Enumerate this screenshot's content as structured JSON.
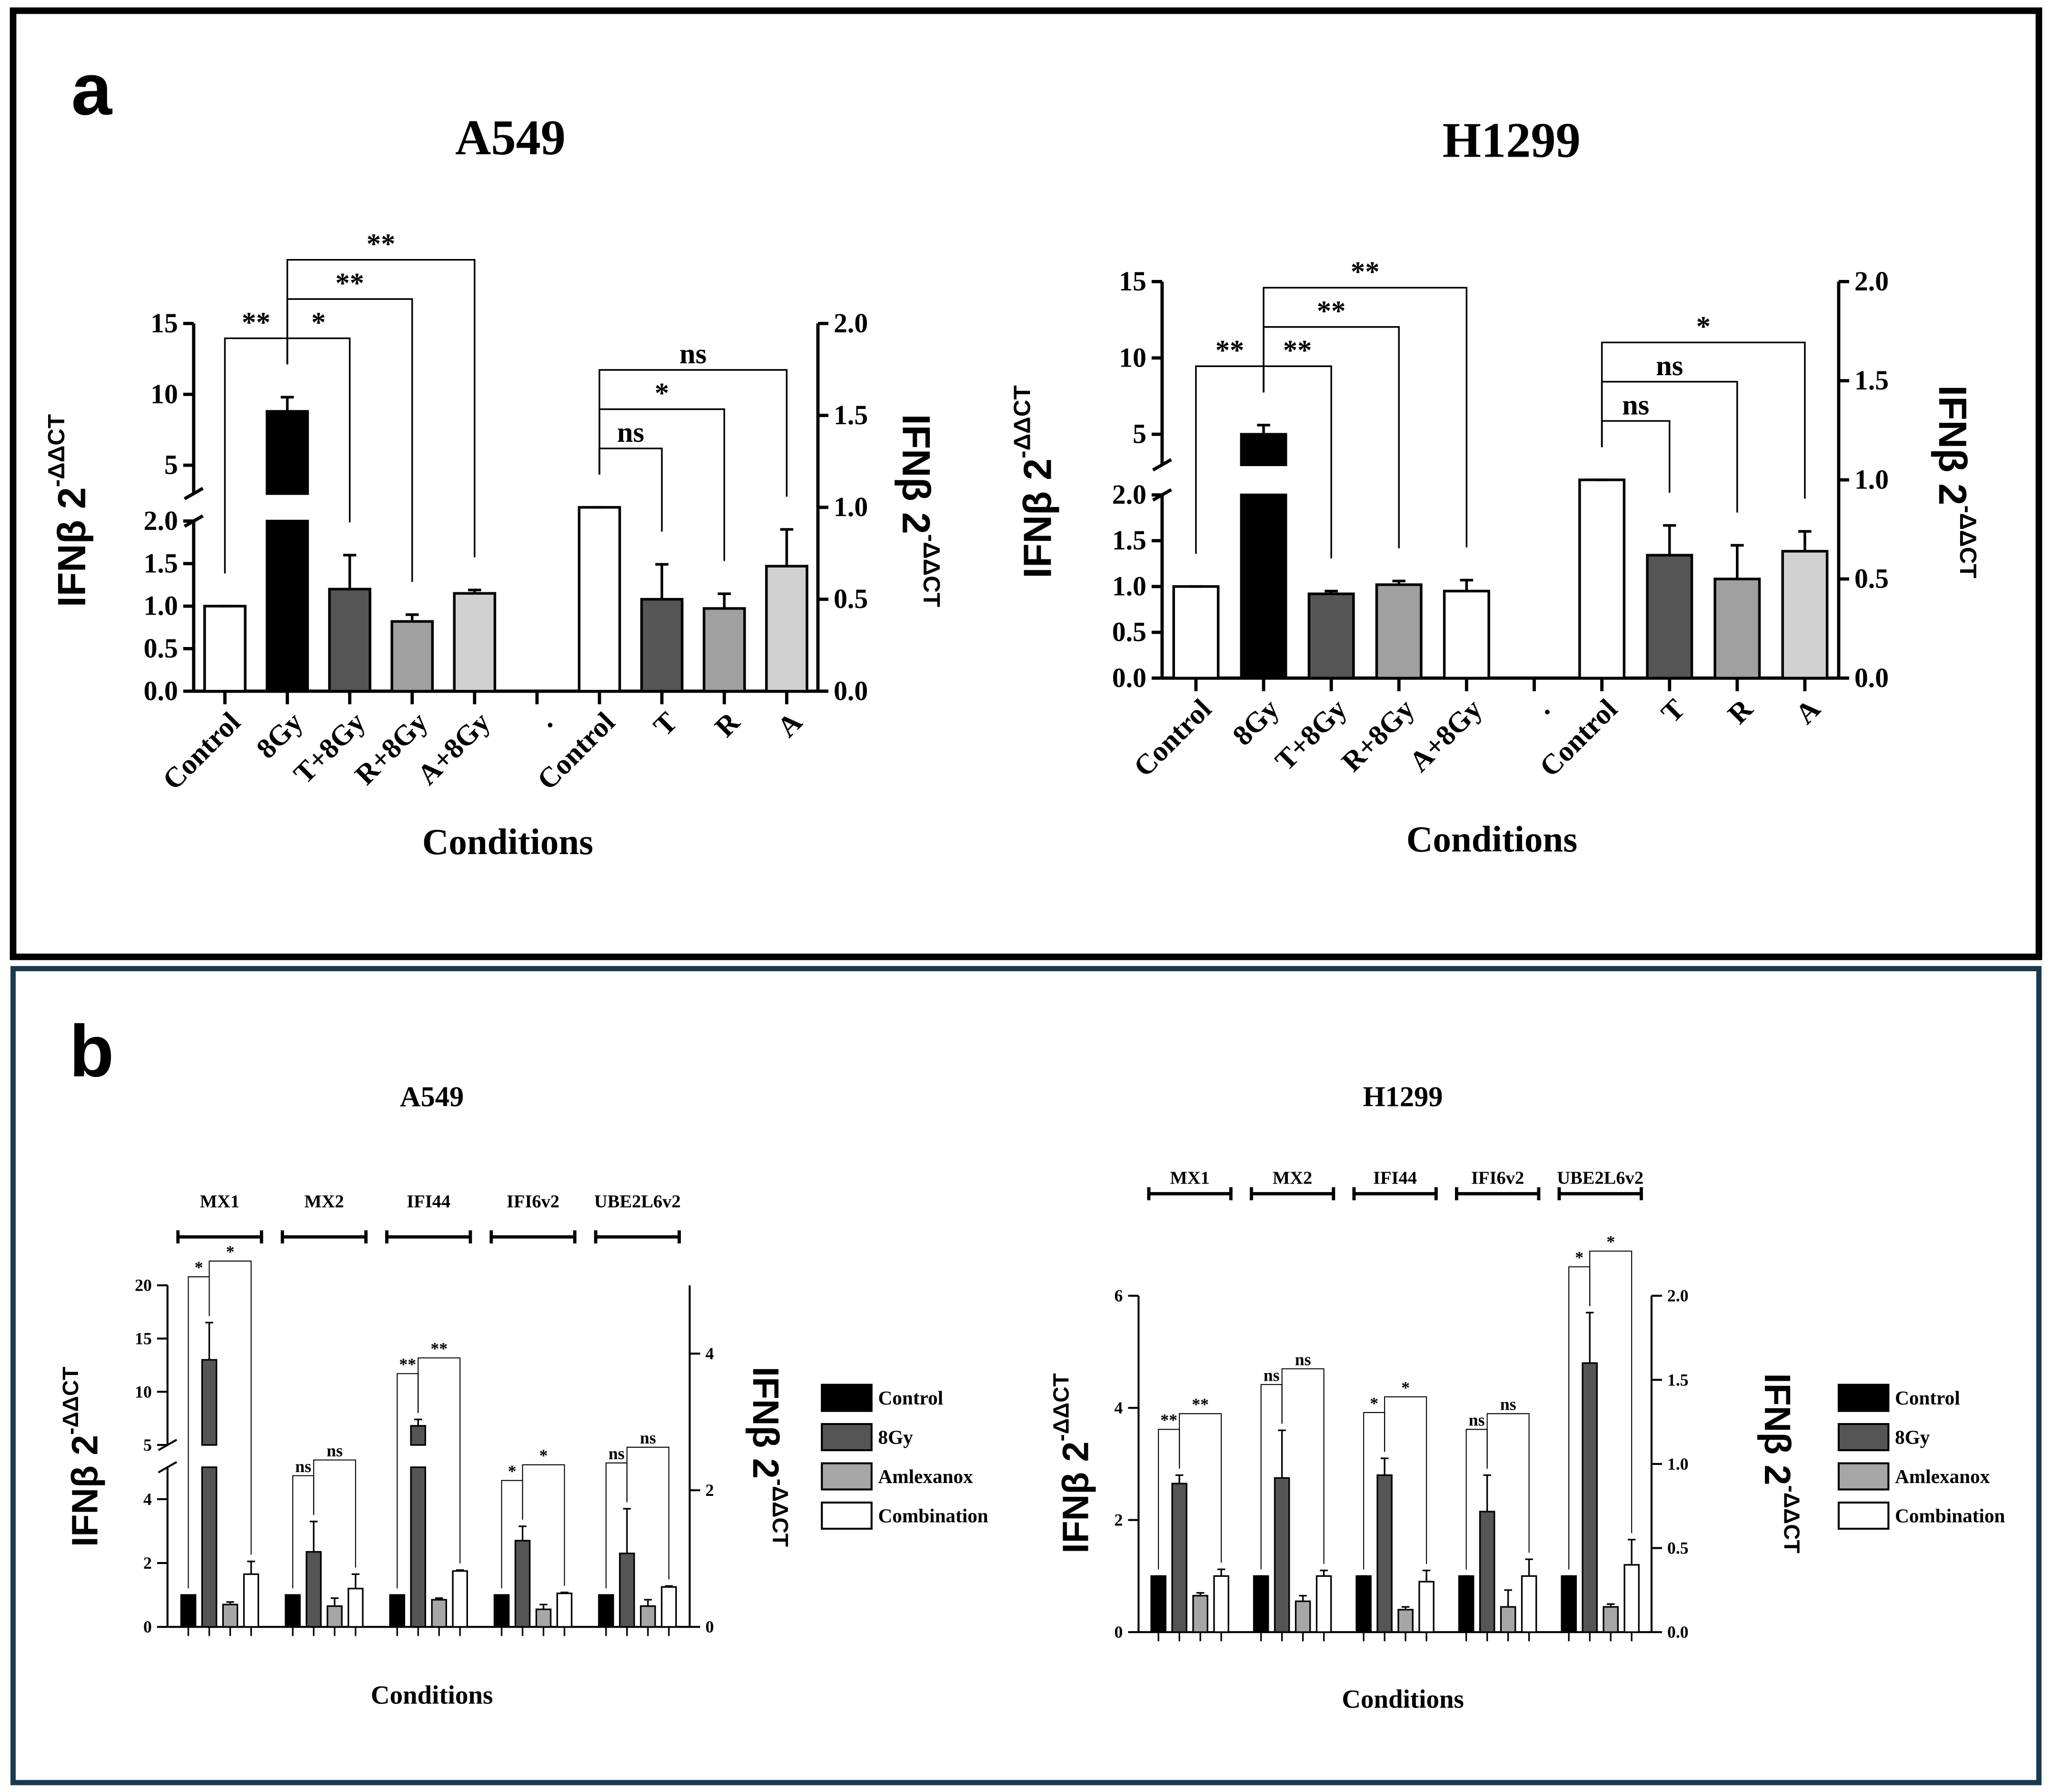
{
  "panel_labels": [
    "a",
    "b"
  ],
  "chart_data": [
    {
      "type": "bar",
      "title": "A549",
      "xlabel": "Conditions",
      "ylabel": "IFNβ 2",
      "ylabel_sup": "-ΔΔCT",
      "y2label": "IFNβ 2",
      "y2label_sup": "-ΔΔCT",
      "categories": [
        "Control",
        "8Gy",
        "T+8Gy",
        "R+8Gy",
        "A+8Gy",
        ".",
        "Control",
        "T",
        "R",
        "A"
      ],
      "ysegments": [
        {
          "ylim": [
            0,
            2
          ],
          "yticks": [
            {
              "value": 0,
              "label": "0.0"
            },
            {
              "value": 0.5,
              "label": "0.5"
            },
            {
              "value": 1,
              "label": "1.0"
            },
            {
              "value": 1.5,
              "label": "1.5"
            },
            {
              "value": 2,
              "label": "2.0"
            }
          ]
        },
        {
          "ylim": [
            3,
            15
          ],
          "yticks": [
            5,
            10,
            15
          ]
        }
      ],
      "y2lim": [
        0,
        2
      ],
      "y2ticks": [
        {
          "value": 0,
          "label": "0.0"
        },
        {
          "value": 0.5,
          "label": "0.5"
        },
        {
          "value": 1,
          "label": "1.0"
        },
        {
          "value": 1.5,
          "label": "1.5"
        },
        {
          "value": 2,
          "label": "2.0"
        }
      ],
      "series": [
        {
          "colors": [
            "#ffffff",
            "#000000",
            "#555555",
            "#a0a0a0",
            "#d0d0d0",
            null,
            null,
            null,
            null,
            null
          ],
          "values": [
            1,
            8.8,
            1.2,
            0.82,
            1.15,
            null,
            null,
            null,
            null,
            null
          ],
          "errors": [
            0,
            1,
            0.4,
            0.08,
            0.04,
            null,
            null,
            null,
            null,
            null
          ]
        },
        {
          "axis": "y2",
          "colors": [
            null,
            null,
            null,
            null,
            null,
            null,
            "#ffffff",
            "#555555",
            "#a0a0a0",
            "#d0d0d0"
          ],
          "values": [
            null,
            null,
            null,
            null,
            null,
            null,
            1,
            0.5,
            0.45,
            0.68
          ],
          "errors": [
            null,
            null,
            null,
            null,
            null,
            null,
            0,
            0.19,
            0.08,
            0.2
          ]
        }
      ],
      "annotations": [
        {
          "text": "**",
          "from": 0,
          "to": 1
        },
        {
          "text": "*",
          "from": 1,
          "to": 2
        },
        {
          "text": "**",
          "from": 1,
          "to": 3
        },
        {
          "text": "**",
          "from": 1,
          "to": 4
        },
        {
          "text": "ns",
          "from": 6,
          "to": 7
        },
        {
          "text": "*",
          "from": 6,
          "to": 8
        },
        {
          "text": "ns",
          "from": 6,
          "to": 9
        }
      ]
    },
    {
      "type": "bar",
      "title": "H1299",
      "xlabel": "Conditions",
      "ylabel": "IFNβ 2",
      "ylabel_sup": "-ΔΔCT",
      "y2label": "IFNβ 2",
      "y2label_sup": "-ΔΔCT",
      "categories": [
        "Control",
        "8Gy",
        "T+8Gy",
        "R+8Gy",
        "A+8Gy",
        ".",
        "Control",
        "T",
        "R",
        "A"
      ],
      "ysegments": [
        {
          "ylim": [
            0,
            2
          ],
          "yticks": [
            {
              "value": 0,
              "label": "0.0"
            },
            {
              "value": 0.5,
              "label": "0.5"
            },
            {
              "value": 1,
              "label": "1.0"
            },
            {
              "value": 1.5,
              "label": "1.5"
            },
            {
              "value": 2,
              "label": "2.0"
            }
          ]
        },
        {
          "ylim": [
            3,
            15
          ],
          "yticks": [
            5,
            10,
            15
          ]
        }
      ],
      "y2lim": [
        0,
        2
      ],
      "y2ticks": [
        {
          "value": 0,
          "label": "0.0"
        },
        {
          "value": 0.5,
          "label": "0.5"
        },
        {
          "value": 1,
          "label": "1.0"
        },
        {
          "value": 1.5,
          "label": "1.5"
        },
        {
          "value": 2,
          "label": "2.0"
        }
      ],
      "series": [
        {
          "colors": [
            "#ffffff",
            "#000000",
            "#555555",
            "#a0a0a0",
            "#ffffff",
            null,
            null,
            null,
            null,
            null
          ],
          "values": [
            1,
            5,
            0.92,
            1.02,
            0.95,
            null,
            null,
            null,
            null,
            null
          ],
          "errors": [
            0,
            0.6,
            0.03,
            0.04,
            0.12,
            null,
            null,
            null,
            null,
            null
          ]
        },
        {
          "axis": "y2",
          "colors": [
            null,
            null,
            null,
            null,
            null,
            null,
            "#ffffff",
            "#555555",
            "#a0a0a0",
            "#d0d0d0"
          ],
          "values": [
            null,
            null,
            null,
            null,
            null,
            null,
            1,
            0.62,
            0.5,
            0.64
          ],
          "errors": [
            null,
            null,
            null,
            null,
            null,
            null,
            0,
            0.15,
            0.17,
            0.1
          ]
        }
      ],
      "annotations": [
        {
          "text": "**",
          "from": 0,
          "to": 1
        },
        {
          "text": "**",
          "from": 1,
          "to": 2
        },
        {
          "text": "**",
          "from": 1,
          "to": 3
        },
        {
          "text": "**",
          "from": 1,
          "to": 4
        },
        {
          "text": "ns",
          "from": 6,
          "to": 7
        },
        {
          "text": "ns",
          "from": 6,
          "to": 8
        },
        {
          "text": "*",
          "from": 6,
          "to": 9
        }
      ]
    },
    {
      "type": "grouped_bar",
      "title": "A549",
      "xlabel": "Conditions",
      "ylabel": "IFNβ 2",
      "ylabel_sup": "-ΔΔCT",
      "y2label": "IFNβ 2",
      "y2label_sup": "-ΔΔCT",
      "categories": [
        "MX1",
        "MX2",
        "IFI44",
        "IFI6v2",
        "UBE2L6v2"
      ],
      "ysegments": [
        {
          "ylim": [
            0,
            5
          ],
          "yticks": [
            0,
            2,
            4
          ]
        },
        {
          "ylim": [
            5,
            20
          ],
          "yticks": [
            5,
            10,
            15,
            20
          ]
        }
      ],
      "y2lim": [
        0,
        5
      ],
      "y2ticks": [
        0,
        2,
        4
      ],
      "legend": "right",
      "series": [
        {
          "name": "Control",
          "color": "#000000",
          "values": [
            1,
            1,
            1,
            1,
            1
          ],
          "errors": [
            0,
            0,
            0,
            0,
            0
          ]
        },
        {
          "name": "8Gy",
          "color": "#555555",
          "values": [
            13,
            2.35,
            6.8,
            2.7,
            2.3
          ],
          "errors": [
            3.5,
            0.95,
            0.6,
            0.45,
            1.4
          ]
        },
        {
          "name": "Amlexanox",
          "color": "#a6a6a6",
          "values": [
            0.7,
            0.65,
            0.85,
            0.55,
            0.65
          ],
          "errors": [
            0.08,
            0.25,
            0.05,
            0.15,
            0.2
          ]
        },
        {
          "name": "Combination",
          "color": "#ffffff",
          "values": [
            1.65,
            1.2,
            1.75,
            1.05,
            1.25
          ],
          "errors": [
            0.4,
            0.45,
            0.03,
            0.03,
            0.03
          ]
        }
      ],
      "annotations": [
        {
          "category": 0,
          "from": 0,
          "to": 1,
          "text": "*"
        },
        {
          "category": 0,
          "from": 1,
          "to": 3,
          "text": "*"
        },
        {
          "category": 1,
          "from": 0,
          "to": 1,
          "text": "ns"
        },
        {
          "category": 1,
          "from": 1,
          "to": 3,
          "text": "ns"
        },
        {
          "category": 2,
          "from": 0,
          "to": 1,
          "text": "**"
        },
        {
          "category": 2,
          "from": 1,
          "to": 3,
          "text": "**"
        },
        {
          "category": 3,
          "from": 0,
          "to": 1,
          "text": "*"
        },
        {
          "category": 3,
          "from": 1,
          "to": 3,
          "text": "*"
        },
        {
          "category": 4,
          "from": 0,
          "to": 1,
          "text": "ns"
        },
        {
          "category": 4,
          "from": 1,
          "to": 3,
          "text": "ns"
        }
      ]
    },
    {
      "type": "grouped_bar",
      "title": "H1299",
      "xlabel": "Conditions",
      "ylabel": "IFNβ 2",
      "ylabel_sup": "-ΔΔCT",
      "y2label": "IFNβ 2",
      "y2label_sup": "-ΔΔCT",
      "categories": [
        "MX1",
        "MX2",
        "IFI44",
        "IFI6v2",
        "UBE2L6v2"
      ],
      "ylim": [
        0,
        6
      ],
      "yticks": [
        0,
        2,
        4,
        6
      ],
      "y2lim": [
        0,
        2
      ],
      "y2ticks": [
        {
          "value": 0,
          "label": "0.0"
        },
        {
          "value": 0.5,
          "label": "0.5"
        },
        {
          "value": 1,
          "label": "1.0"
        },
        {
          "value": 1.5,
          "label": "1.5"
        },
        {
          "value": 2,
          "label": "2.0"
        }
      ],
      "legend": "right",
      "series": [
        {
          "name": "Control",
          "color": "#000000",
          "values": [
            1,
            1,
            1,
            1,
            1
          ],
          "errors": [
            0,
            0,
            0,
            0,
            0
          ]
        },
        {
          "name": "8Gy",
          "color": "#555555",
          "values": [
            2.65,
            2.75,
            2.8,
            2.15,
            4.8
          ],
          "errors": [
            0.15,
            0.85,
            0.3,
            0.65,
            0.9
          ]
        },
        {
          "name": "Amlexanox",
          "color": "#a6a6a6",
          "values": [
            0.65,
            0.55,
            0.4,
            0.45,
            0.45
          ],
          "errors": [
            0.05,
            0.1,
            0.05,
            0.3,
            0.05
          ]
        },
        {
          "name": "Combination",
          "color": "#ffffff",
          "values": [
            1,
            1,
            0.9,
            1,
            1.2
          ],
          "errors": [
            0.12,
            0.1,
            0.2,
            0.3,
            0.45
          ]
        }
      ],
      "annotations": [
        {
          "category": 0,
          "from": 0,
          "to": 1,
          "text": "**"
        },
        {
          "category": 0,
          "from": 1,
          "to": 3,
          "text": "**"
        },
        {
          "category": 1,
          "from": 0,
          "to": 1,
          "text": "ns"
        },
        {
          "category": 1,
          "from": 1,
          "to": 3,
          "text": "ns"
        },
        {
          "category": 2,
          "from": 0,
          "to": 1,
          "text": "*"
        },
        {
          "category": 2,
          "from": 1,
          "to": 3,
          "text": "*"
        },
        {
          "category": 3,
          "from": 0,
          "to": 1,
          "text": "ns"
        },
        {
          "category": 3,
          "from": 1,
          "to": 3,
          "text": "ns"
        },
        {
          "category": 4,
          "from": 0,
          "to": 1,
          "text": "*"
        },
        {
          "category": 4,
          "from": 1,
          "to": 3,
          "text": "*"
        }
      ]
    }
  ]
}
